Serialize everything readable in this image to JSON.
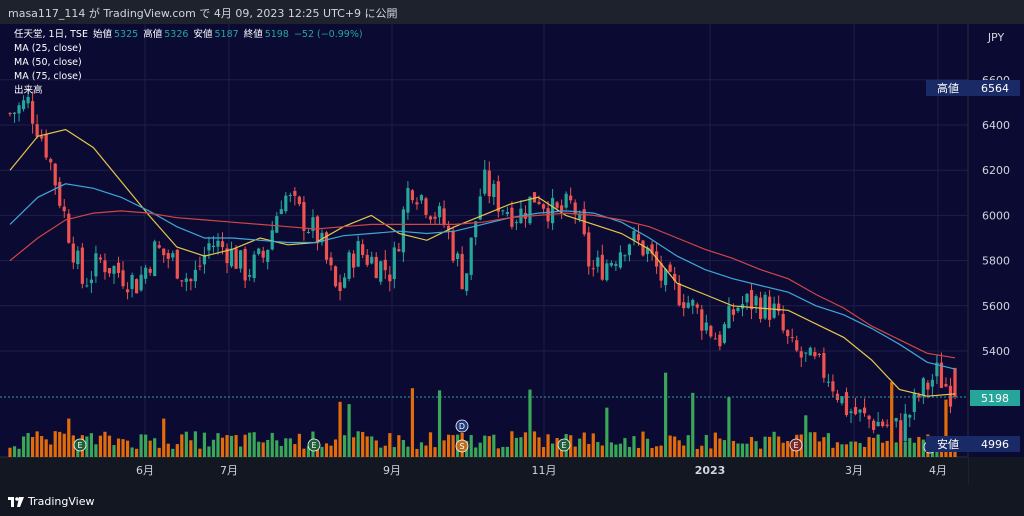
{
  "header": {
    "publish_text": "masa117_114 が TradingView.com で 4月 09, 2023 12:25 UTC+9 に公開"
  },
  "legend": {
    "symbol": "任天堂, 1日, TSE",
    "open_label": "始値",
    "open_value": "5325",
    "high_label": "高値",
    "high_value": "5326",
    "low_label": "安値",
    "low_value": "5187",
    "close_label": "終値",
    "close_value": "5198",
    "change": "−52 (−0.99%)",
    "ma25": "MA (25, close)",
    "ma50": "MA (50, close)",
    "ma75": "MA (75, close)",
    "volume": "出来高"
  },
  "price_scale": {
    "currency": "JPY",
    "ticks": [
      "6600",
      "6400",
      "6200",
      "6000",
      "5800",
      "5600",
      "5400"
    ],
    "high_tag_label": "高値",
    "high_tag_value": "6564",
    "last_value": "5198",
    "low_tag_label": "安値",
    "low_tag_value": "4996"
  },
  "time_axis": [
    "6月",
    "7月",
    "9月",
    "11月",
    "2023",
    "3月",
    "4月"
  ],
  "footer": {
    "brand": "TradingView"
  },
  "colors": {
    "background": "#0b0a33",
    "up": "#26a69a",
    "down": "#ef5350",
    "ma25": "#e5c64a",
    "ma50": "#3fa7d6",
    "ma75": "#d04545",
    "vol_up": "#3aa657",
    "vol_down": "#e36c0a"
  },
  "chart_data": {
    "type": "candlestick",
    "title": "任天堂, 1日, TSE",
    "ylabel": "JPY",
    "ylim": [
      4950,
      6650
    ],
    "x_ticks": [
      "6月",
      "7月",
      "9月",
      "11月",
      "2023",
      "3月",
      "4月"
    ],
    "last_bar": {
      "open": 5325,
      "high": 5326,
      "low": 5187,
      "close": 5198
    },
    "period_high": 6564,
    "period_low": 4996,
    "ma_series": [
      {
        "name": "MA (25, close)",
        "values": [
          6200,
          6350,
          6380,
          6300,
          6150,
          6000,
          5860,
          5820,
          5850,
          5900,
          5870,
          5880,
          5950,
          6000,
          5920,
          5890,
          5950,
          6000,
          6050,
          6080,
          6000,
          5960,
          5920,
          5850,
          5700,
          5650,
          5600,
          5590,
          5580,
          5520,
          5460,
          5360,
          5230,
          5200,
          5210
        ]
      },
      {
        "name": "MA (50, close)",
        "values": [
          5960,
          6080,
          6140,
          6120,
          6080,
          6020,
          5950,
          5900,
          5900,
          5890,
          5880,
          5880,
          5910,
          5920,
          5930,
          5920,
          5930,
          5960,
          5990,
          6010,
          6020,
          6010,
          5970,
          5900,
          5820,
          5760,
          5720,
          5690,
          5660,
          5600,
          5560,
          5500,
          5430,
          5350,
          5320
        ]
      },
      {
        "name": "MA (75, close)",
        "values": [
          5800,
          5900,
          5980,
          6010,
          6020,
          6010,
          5990,
          5980,
          5970,
          5960,
          5950,
          5940,
          5950,
          5960,
          5960,
          5960,
          5960,
          5970,
          5990,
          6000,
          6010,
          6000,
          5980,
          5950,
          5900,
          5850,
          5810,
          5760,
          5720,
          5650,
          5590,
          5510,
          5450,
          5390,
          5370
        ]
      }
    ],
    "closes": [
      6450,
      6500,
      6300,
      6000,
      5700,
      5800,
      5750,
      5700,
      5850,
      5800,
      5700,
      5880,
      5850,
      5750,
      5820,
      6100,
      6000,
      5900,
      5650,
      5850,
      5800,
      5750,
      6150,
      6050,
      5950,
      5700,
      6150,
      6050,
      6000,
      6100,
      6000,
      6050,
      5750,
      5800,
      5900,
      5850,
      5700,
      5650,
      5550,
      5450,
      5600,
      5620,
      5580,
      5400,
      5350,
      5300,
      5150,
      5100,
      5080,
      5050,
      5200,
      5300,
      5198
    ]
  }
}
